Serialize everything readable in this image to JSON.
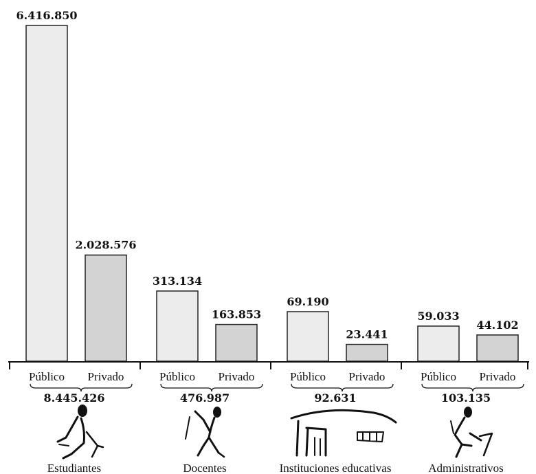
{
  "chart_data": {
    "type": "bar",
    "title": "",
    "xlabel": "",
    "ylabel": "",
    "subcategories": [
      "Público",
      "Privado"
    ],
    "groups": [
      {
        "name": "Estudiantes",
        "total": "8.445.426",
        "icon": "student-icon",
        "values": [
          6416850,
          2028576
        ],
        "labels": [
          "6.416.850",
          "2.028.576"
        ]
      },
      {
        "name": "Docentes",
        "total": "476.987",
        "icon": "teacher-icon",
        "values": [
          313134,
          163853
        ],
        "labels": [
          "313.134",
          "163.853"
        ]
      },
      {
        "name": "Instituciones educativas",
        "total": "92.631",
        "icon": "school-building-icon",
        "values": [
          69190,
          23441
        ],
        "labels": [
          "69.190",
          "23.441"
        ]
      },
      {
        "name": "Administrativos",
        "total": "103.135",
        "icon": "administrative-worker-icon",
        "values": [
          59033,
          44102
        ],
        "labels": [
          "59.033",
          "44.102"
        ]
      }
    ],
    "note": "each group uses its own independent scale (broken scale)",
    "colors": {
      "publico": "#ececec",
      "privado": "#d3d3d3",
      "stroke": "#222222"
    }
  }
}
